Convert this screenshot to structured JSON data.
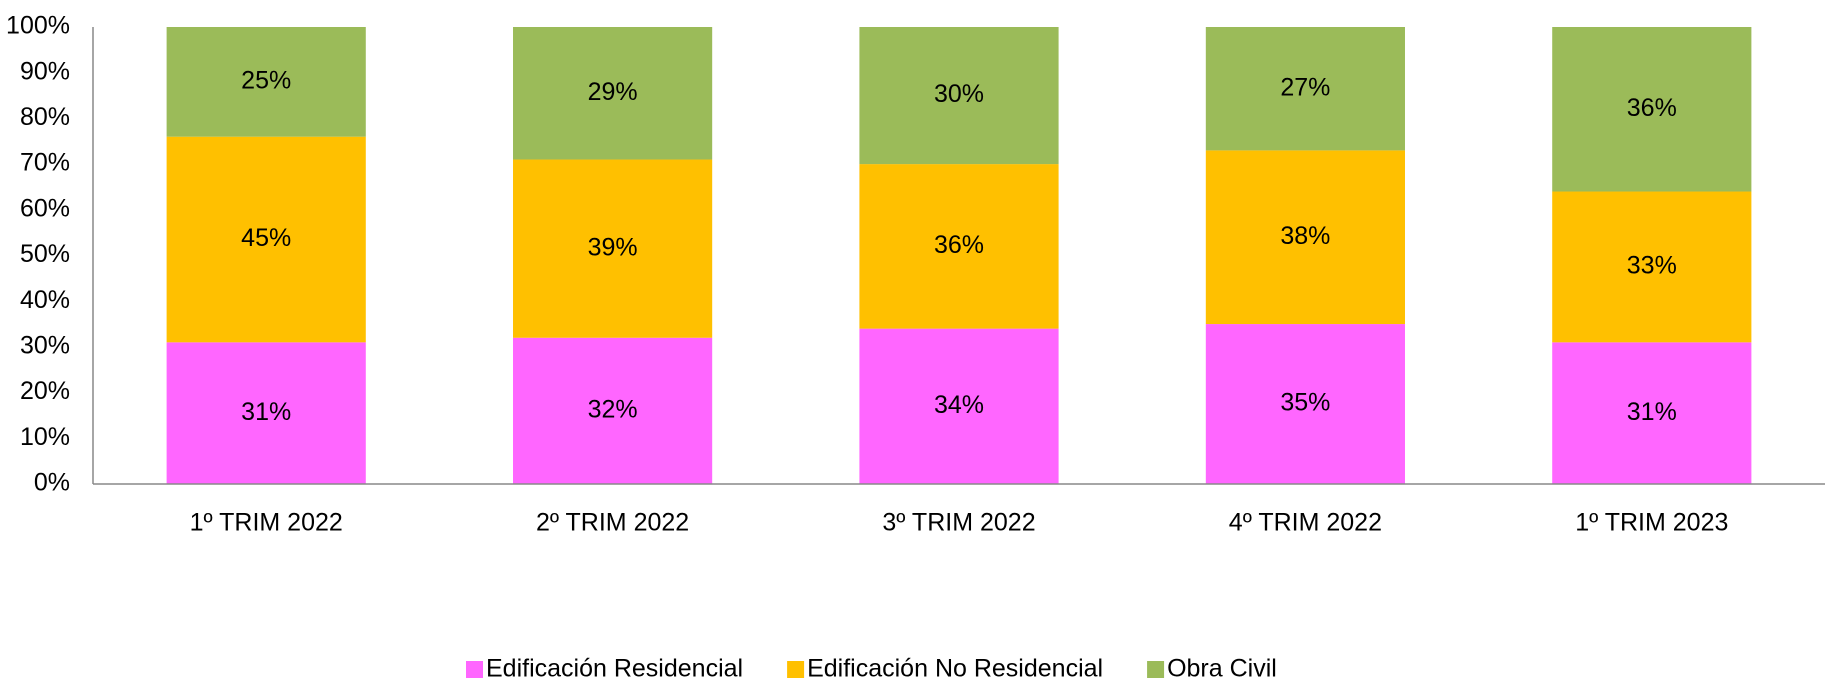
{
  "chart_data": {
    "type": "stacked_bar",
    "categories": [
      "1º TRIM 2022",
      "2º TRIM 2022",
      "3º TRIM 2022",
      "4º TRIM 2022",
      "1º TRIM 2023"
    ],
    "series": [
      {
        "name": "Edificación Residencial",
        "color": "#ff66ff",
        "values": [
          31,
          32,
          34,
          35,
          31
        ],
        "value_labels": [
          "31%",
          "32%",
          "34%",
          "35%",
          "31%"
        ]
      },
      {
        "name": "Edificación No Residencial",
        "color": "#ffc000",
        "values": [
          45,
          39,
          36,
          38,
          33
        ],
        "value_labels": [
          "45%",
          "39%",
          "36%",
          "38%",
          "33%"
        ]
      },
      {
        "name": "Obra Civil",
        "color": "#9bbb59",
        "values": [
          25,
          29,
          30,
          27,
          36
        ],
        "value_labels": [
          "25%",
          "29%",
          "30%",
          "27%",
          "36%"
        ]
      }
    ],
    "ylim": [
      0,
      100
    ],
    "yticks": [
      {
        "value": 0,
        "label": "0%"
      },
      {
        "value": 10,
        "label": "10%"
      },
      {
        "value": 20,
        "label": "20%"
      },
      {
        "value": 30,
        "label": "30%"
      },
      {
        "value": 40,
        "label": "40%"
      },
      {
        "value": 50,
        "label": "50%"
      },
      {
        "value": 60,
        "label": "60%"
      },
      {
        "value": 70,
        "label": "70%"
      },
      {
        "value": 80,
        "label": "80%"
      },
      {
        "value": 90,
        "label": "90%"
      },
      {
        "value": 100,
        "label": "100%"
      }
    ],
    "grid": false,
    "legend": "bottom"
  }
}
